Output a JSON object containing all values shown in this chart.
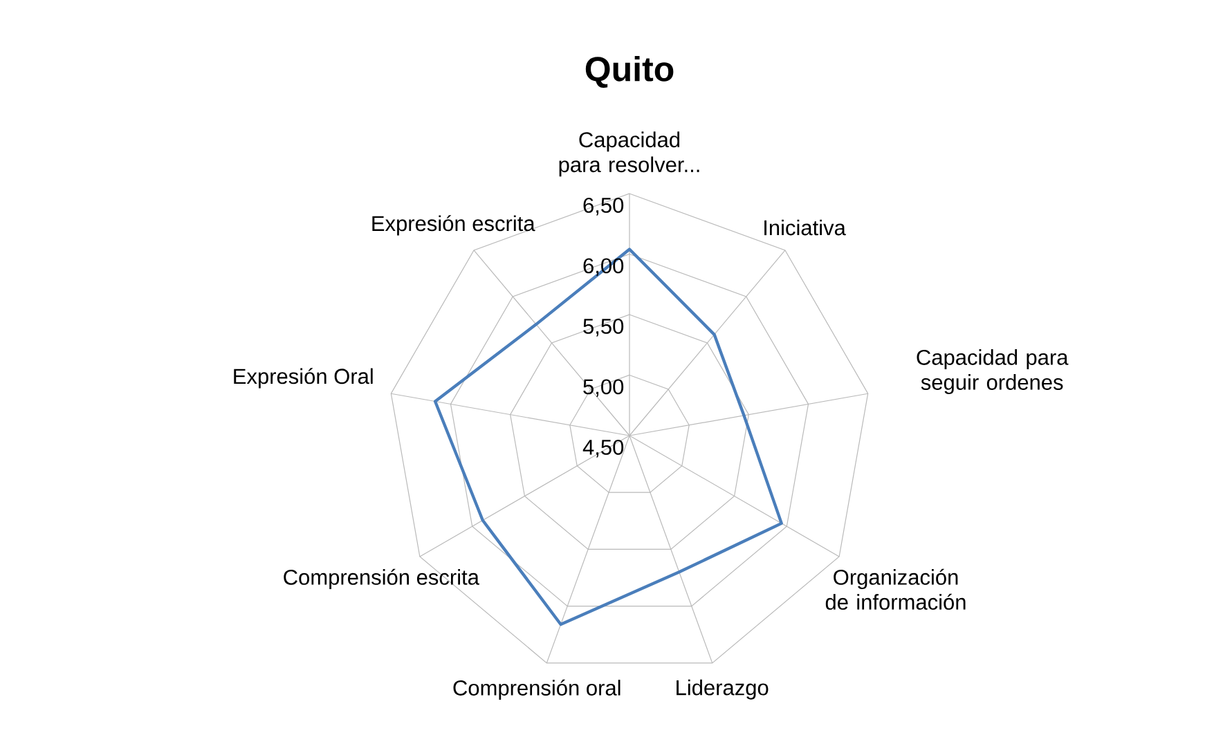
{
  "chart_data": {
    "type": "radar",
    "title": "Quito",
    "categories": [
      "Capacidad para resolver...",
      "Iniciativa",
      "Capacidad para seguir ordenes",
      "Organización de información",
      "Liderazgo",
      "Comprensión oral",
      "Comprensión escrita",
      "Expresión Oral",
      "Expresión escrita"
    ],
    "series": [
      {
        "color": "#4a7ebb",
        "values": [
          6.04,
          5.59,
          5.46,
          5.95,
          5.7,
          6.16,
          5.9,
          6.13,
          5.7
        ]
      }
    ],
    "ylim": [
      4.5,
      6.5
    ],
    "yticks": [
      {
        "value": 4.5,
        "label": "4,50"
      },
      {
        "value": 5.0,
        "label": "5,00"
      },
      {
        "value": 5.5,
        "label": "5,50"
      },
      {
        "value": 6.0,
        "label": "6,00"
      },
      {
        "value": 6.5,
        "label": "6,50"
      }
    ],
    "grid": true,
    "marker": "none",
    "line_style": "solid"
  }
}
